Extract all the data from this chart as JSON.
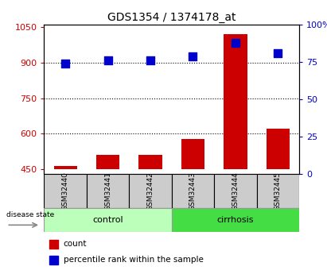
{
  "title": "GDS1354 / 1374178_at",
  "samples": [
    "GSM32440",
    "GSM32441",
    "GSM32442",
    "GSM32443",
    "GSM32444",
    "GSM32445"
  ],
  "counts": [
    463,
    510,
    510,
    578,
    1020,
    620
  ],
  "percentile_ranks": [
    74,
    76,
    76,
    79,
    88,
    81
  ],
  "ylim_left": [
    430,
    1060
  ],
  "ylim_right": [
    0,
    100
  ],
  "yticks_left": [
    450,
    600,
    750,
    900,
    1050
  ],
  "yticks_right": [
    0,
    25,
    50,
    75,
    100
  ],
  "bar_color": "#cc0000",
  "dot_color": "#0000cc",
  "control_color": "#bbffbb",
  "cirrhosis_color": "#44dd44",
  "sample_box_color": "#cccccc",
  "bar_bottom": 450,
  "bar_width": 0.55,
  "dot_size": 45,
  "title_fontsize": 10,
  "tick_fontsize": 8,
  "label_fontsize": 7.5,
  "group_fontsize": 8
}
